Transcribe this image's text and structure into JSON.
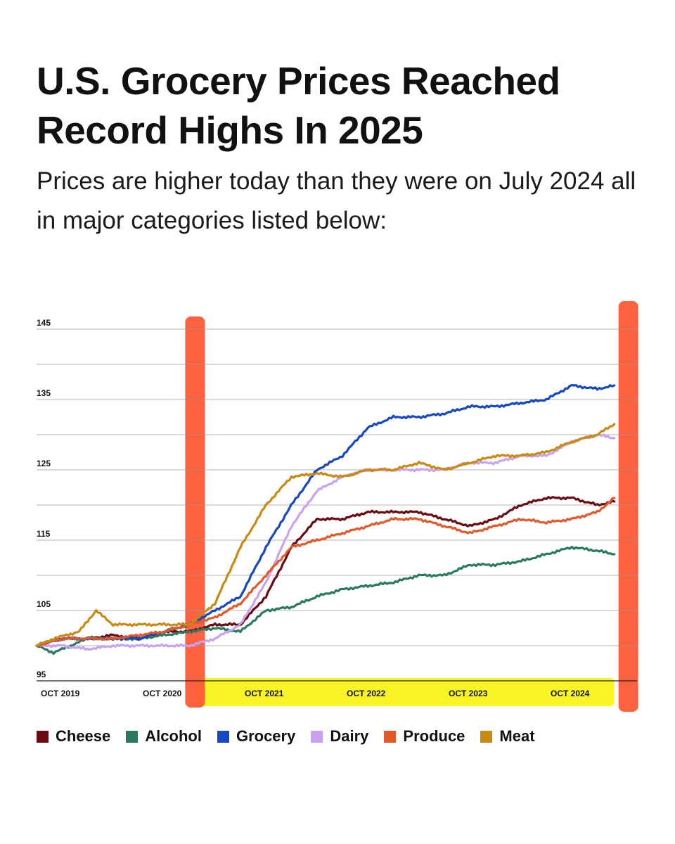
{
  "title": "U.S. Grocery Prices Reached Record Highs In 2025",
  "subtitle": "Prices are higher today than they were on July 2024 all in major categories listed below:",
  "chart_data": {
    "type": "line",
    "xlabel": "",
    "ylabel": "",
    "ylim": [
      95,
      145
    ],
    "xlim": [
      "2019-10",
      "2025-06"
    ],
    "yticks": [
      95,
      105,
      115,
      125,
      135,
      145
    ],
    "xticks": [
      {
        "date": "2019-10",
        "label": "OCT 2019"
      },
      {
        "date": "2020-10",
        "label": "OCT 2020"
      },
      {
        "date": "2021-10",
        "label": "OCT 2021"
      },
      {
        "date": "2022-10",
        "label": "OCT 2022"
      },
      {
        "date": "2023-10",
        "label": "OCT 2023"
      },
      {
        "date": "2024-10",
        "label": "OCT 2024"
      }
    ],
    "grid": true,
    "legend_position": "bottom",
    "annotations": {
      "highlight_bands": [
        {
          "from": "2021-03",
          "to": "2021-05",
          "color": "#ff5a36"
        },
        {
          "from": "2025-06",
          "to": "2025-08",
          "color": "#ff5a36"
        }
      ],
      "underline_highlight": {
        "from": "2021-05",
        "to": "2025-06",
        "color": "#f7f200"
      }
    },
    "series": [
      {
        "name": "Cheese",
        "color": "#6b0a12",
        "points": [
          [
            "2019-10",
            100
          ],
          [
            "2020-01",
            101
          ],
          [
            "2020-04",
            101
          ],
          [
            "2020-07",
            101.5
          ],
          [
            "2020-10",
            101
          ],
          [
            "2021-01",
            102
          ],
          [
            "2021-04",
            102
          ],
          [
            "2021-07",
            103
          ],
          [
            "2021-10",
            103
          ],
          [
            "2022-01",
            107
          ],
          [
            "2022-04",
            114
          ],
          [
            "2022-07",
            118
          ],
          [
            "2022-10",
            118
          ],
          [
            "2023-01",
            119
          ],
          [
            "2023-04",
            119
          ],
          [
            "2023-07",
            119
          ],
          [
            "2023-10",
            118
          ],
          [
            "2024-01",
            117
          ],
          [
            "2024-04",
            118
          ],
          [
            "2024-07",
            120
          ],
          [
            "2024-10",
            121
          ],
          [
            "2025-01",
            121
          ],
          [
            "2025-04",
            120
          ],
          [
            "2025-06",
            120.5
          ]
        ]
      },
      {
        "name": "Alcohol",
        "color": "#2a7a5f",
        "points": [
          [
            "2019-10",
            100
          ],
          [
            "2019-12",
            99
          ],
          [
            "2020-02",
            100
          ],
          [
            "2020-04",
            101
          ],
          [
            "2020-07",
            101
          ],
          [
            "2020-10",
            101
          ],
          [
            "2021-01",
            101.5
          ],
          [
            "2021-04",
            102
          ],
          [
            "2021-07",
            102.5
          ],
          [
            "2021-10",
            102
          ],
          [
            "2022-01",
            105
          ],
          [
            "2022-04",
            105.5
          ],
          [
            "2022-07",
            107
          ],
          [
            "2022-10",
            108
          ],
          [
            "2023-01",
            108.5
          ],
          [
            "2023-04",
            109
          ],
          [
            "2023-07",
            110
          ],
          [
            "2023-10",
            110
          ],
          [
            "2024-01",
            111.5
          ],
          [
            "2024-04",
            111.5
          ],
          [
            "2024-07",
            112
          ],
          [
            "2024-10",
            113
          ],
          [
            "2025-01",
            114
          ],
          [
            "2025-04",
            113.5
          ],
          [
            "2025-06",
            113
          ]
        ]
      },
      {
        "name": "Grocery",
        "color": "#1748c2",
        "points": [
          [
            "2019-10",
            100
          ],
          [
            "2020-01",
            101
          ],
          [
            "2020-04",
            101
          ],
          [
            "2020-07",
            101
          ],
          [
            "2020-10",
            101
          ],
          [
            "2021-01",
            102
          ],
          [
            "2021-04",
            103
          ],
          [
            "2021-07",
            105
          ],
          [
            "2021-10",
            107
          ],
          [
            "2022-01",
            114
          ],
          [
            "2022-04",
            120
          ],
          [
            "2022-07",
            125
          ],
          [
            "2022-10",
            127
          ],
          [
            "2023-01",
            131
          ],
          [
            "2023-04",
            132.5
          ],
          [
            "2023-07",
            132.5
          ],
          [
            "2023-10",
            133
          ],
          [
            "2024-01",
            134
          ],
          [
            "2024-04",
            134
          ],
          [
            "2024-07",
            134.5
          ],
          [
            "2024-10",
            135
          ],
          [
            "2025-01",
            137
          ],
          [
            "2025-04",
            136.5
          ],
          [
            "2025-06",
            137
          ]
        ]
      },
      {
        "name": "Dairy",
        "color": "#c9a2f0",
        "points": [
          [
            "2019-10",
            100
          ],
          [
            "2020-01",
            100
          ],
          [
            "2020-04",
            99.5
          ],
          [
            "2020-07",
            100
          ],
          [
            "2020-10",
            100
          ],
          [
            "2021-01",
            100
          ],
          [
            "2021-04",
            100
          ],
          [
            "2021-07",
            101
          ],
          [
            "2021-10",
            103
          ],
          [
            "2022-01",
            109
          ],
          [
            "2022-04",
            117
          ],
          [
            "2022-07",
            122
          ],
          [
            "2022-10",
            124
          ],
          [
            "2023-01",
            125
          ],
          [
            "2023-04",
            125
          ],
          [
            "2023-07",
            125
          ],
          [
            "2023-10",
            125
          ],
          [
            "2024-01",
            126
          ],
          [
            "2024-04",
            126
          ],
          [
            "2024-07",
            127
          ],
          [
            "2024-10",
            127
          ],
          [
            "2025-01",
            129
          ],
          [
            "2025-04",
            130
          ],
          [
            "2025-06",
            129.5
          ]
        ]
      },
      {
        "name": "Produce",
        "color": "#e05a2b",
        "points": [
          [
            "2019-10",
            100
          ],
          [
            "2020-01",
            101
          ],
          [
            "2020-04",
            101
          ],
          [
            "2020-07",
            101
          ],
          [
            "2020-10",
            101.5
          ],
          [
            "2021-01",
            102
          ],
          [
            "2021-04",
            103
          ],
          [
            "2021-07",
            104
          ],
          [
            "2021-10",
            106
          ],
          [
            "2022-01",
            110
          ],
          [
            "2022-04",
            114
          ],
          [
            "2022-07",
            115
          ],
          [
            "2022-10",
            116
          ],
          [
            "2023-01",
            117
          ],
          [
            "2023-04",
            118
          ],
          [
            "2023-07",
            118
          ],
          [
            "2023-10",
            117
          ],
          [
            "2024-01",
            116
          ],
          [
            "2024-04",
            117
          ],
          [
            "2024-07",
            118
          ],
          [
            "2024-10",
            117.5
          ],
          [
            "2025-01",
            118
          ],
          [
            "2025-04",
            119
          ],
          [
            "2025-06",
            121
          ]
        ]
      },
      {
        "name": "Meat",
        "color": "#c88a12",
        "points": [
          [
            "2019-10",
            100
          ],
          [
            "2019-12",
            101
          ],
          [
            "2020-03",
            102
          ],
          [
            "2020-05",
            105
          ],
          [
            "2020-07",
            103
          ],
          [
            "2020-10",
            103
          ],
          [
            "2021-01",
            103
          ],
          [
            "2021-04",
            103
          ],
          [
            "2021-07",
            106
          ],
          [
            "2021-10",
            114
          ],
          [
            "2022-01",
            120
          ],
          [
            "2022-04",
            124
          ],
          [
            "2022-07",
            124.5
          ],
          [
            "2022-10",
            124
          ],
          [
            "2023-01",
            125
          ],
          [
            "2023-04",
            125
          ],
          [
            "2023-07",
            126
          ],
          [
            "2023-10",
            125
          ],
          [
            "2024-01",
            126
          ],
          [
            "2024-04",
            127
          ],
          [
            "2024-07",
            127
          ],
          [
            "2024-10",
            127.5
          ],
          [
            "2025-01",
            129
          ],
          [
            "2025-04",
            130
          ],
          [
            "2025-06",
            131.5
          ]
        ]
      }
    ]
  },
  "legend": [
    {
      "label": "Cheese",
      "color": "#6b0a12"
    },
    {
      "label": "Alcohol",
      "color": "#2a7a5f"
    },
    {
      "label": "Grocery",
      "color": "#1748c2"
    },
    {
      "label": "Dairy",
      "color": "#c9a2f0"
    },
    {
      "label": "Produce",
      "color": "#e05a2b"
    },
    {
      "label": "Meat",
      "color": "#c88a12"
    }
  ]
}
